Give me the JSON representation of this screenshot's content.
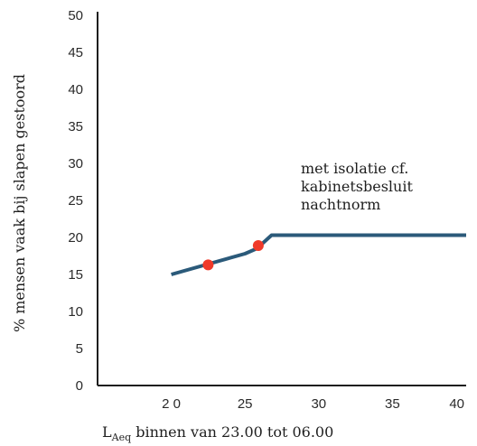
{
  "chart_data": {
    "type": "line",
    "xlabel_main": "L",
    "xlabel_sub": "Aeq",
    "xlabel_rest": " binnen van 23.00 tot 06.00",
    "ylabel": "% mensen vaak bij slapen gestoord",
    "xlim": [
      15,
      40
    ],
    "ylim": [
      0,
      50
    ],
    "x_ticks": [
      20,
      25,
      30,
      35,
      40
    ],
    "y_ticks": [
      0,
      5,
      10,
      15,
      20,
      25,
      30,
      35,
      40,
      45,
      50
    ],
    "x_tick_labels": [
      "2 0",
      "25",
      "30",
      "35",
      "40"
    ],
    "grid": false,
    "series": [
      {
        "color": "#2b5a7a",
        "x": [
          20,
          25,
          25.8,
          26.8,
          40
        ],
        "y": [
          15,
          17.8,
          18.5,
          20.3,
          20.3
        ]
      }
    ],
    "points": [
      {
        "x": 22.5,
        "y": 16.3,
        "color": "#f03a2a"
      },
      {
        "x": 25.9,
        "y": 18.9,
        "color": "#f03a2a"
      }
    ],
    "annotation": [
      "met isolatie cf.",
      "kabinetsbesluit",
      "nachtnorm"
    ]
  }
}
